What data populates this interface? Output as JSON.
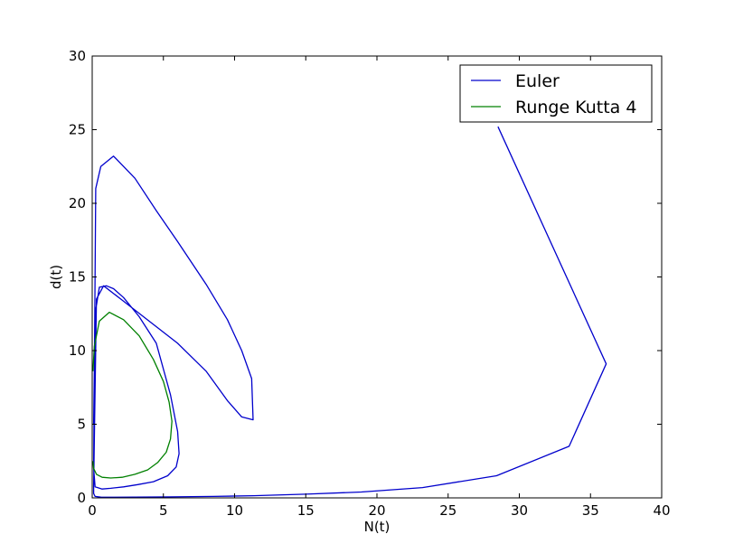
{
  "chart_data": {
    "type": "line",
    "title": "",
    "xlabel": "N(t)",
    "ylabel": "d(t)",
    "xlim": [
      0,
      40
    ],
    "ylim": [
      0,
      30
    ],
    "xticks": [
      0,
      5,
      10,
      15,
      20,
      25,
      30,
      35,
      40
    ],
    "yticks": [
      0,
      5,
      10,
      15,
      20,
      25,
      30
    ],
    "grid": false,
    "legend": "top-right",
    "series": [
      {
        "name": "Euler",
        "color": "#0000cc",
        "x": [
          28.5,
          36.1,
          33.5,
          28.4,
          23.2,
          18.9,
          15.0,
          11.3,
          8.5,
          5.5,
          3.0,
          1.5,
          0.6,
          0.2,
          0.1,
          0.1,
          0.3,
          0.8,
          2.0,
          4.0,
          6.0,
          8.0,
          9.5,
          10.5,
          11.3,
          11.2,
          10.5,
          9.5,
          8.0,
          6.0,
          4.5,
          3.0,
          1.5,
          0.6,
          0.25,
          0.1,
          0.2,
          0.7,
          1.3,
          2.2,
          3.2,
          4.3,
          5.3,
          5.9,
          6.1,
          6.0,
          5.5,
          4.5,
          3.3,
          2.2,
          1.5,
          1.0,
          0.5,
          0.2,
          0.1
        ],
        "y": [
          25.2,
          9.1,
          3.5,
          1.5,
          0.7,
          0.4,
          0.25,
          0.15,
          0.1,
          0.07,
          0.05,
          0.04,
          0.05,
          0.1,
          0.3,
          0.8,
          13.5,
          14.4,
          13.5,
          12.0,
          10.5,
          8.6,
          6.6,
          5.5,
          5.3,
          8.1,
          10.0,
          12.1,
          14.5,
          17.4,
          19.5,
          21.7,
          23.2,
          22.5,
          21.0,
          2.0,
          0.75,
          0.6,
          0.65,
          0.75,
          0.9,
          1.1,
          1.5,
          2.1,
          3.0,
          4.5,
          7.0,
          10.5,
          12.3,
          13.6,
          14.2,
          14.4,
          14.3,
          12.5,
          5.0
        ]
      },
      {
        "name": "Runge Kutta 4",
        "color": "#008000",
        "x": [
          0.05,
          0.15,
          0.5,
          1.2,
          2.2,
          3.3,
          4.3,
          5.0,
          5.4,
          5.6,
          5.5,
          5.2,
          4.6,
          3.9,
          3.0,
          2.1,
          1.3,
          0.7,
          0.3,
          0.1,
          0.05
        ],
        "y": [
          8.6,
          10.3,
          12.0,
          12.6,
          12.1,
          11.0,
          9.4,
          7.9,
          6.5,
          5.2,
          4.0,
          3.1,
          2.4,
          1.9,
          1.6,
          1.4,
          1.35,
          1.4,
          1.6,
          2.0,
          2.5
        ]
      }
    ]
  }
}
